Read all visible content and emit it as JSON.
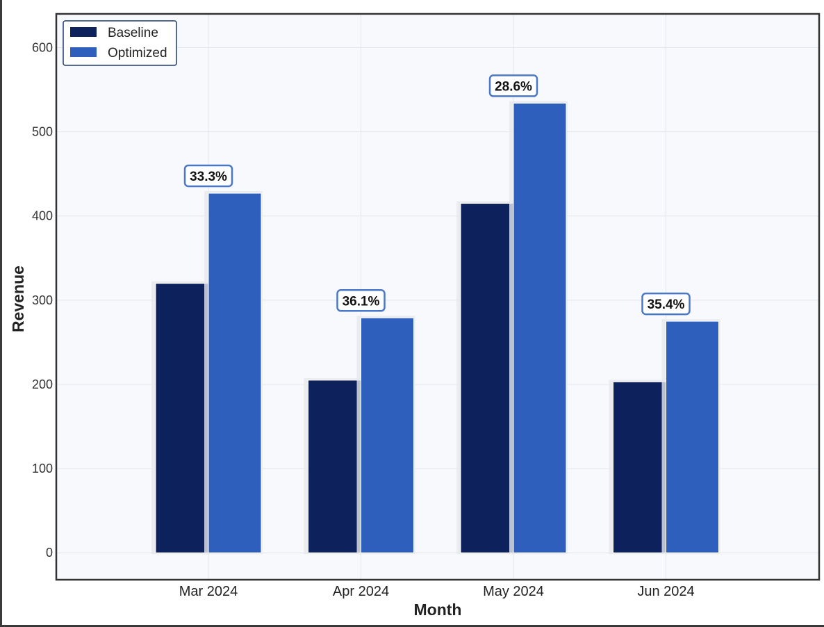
{
  "chart_data": {
    "type": "bar",
    "categories": [
      "Mar 2024",
      "Apr 2024",
      "May 2024",
      "Jun 2024"
    ],
    "series": [
      {
        "name": "Baseline",
        "values": [
          320,
          205,
          415,
          203
        ],
        "color": "#0d215d"
      },
      {
        "name": "Optimized",
        "values": [
          427,
          279,
          534,
          275
        ],
        "color": "#2f5fbd"
      }
    ],
    "annotations": [
      "33.3%",
      "36.1%",
      "28.6%",
      "35.4%"
    ],
    "xlabel": "Month",
    "ylabel": "Revenue",
    "ylim": [
      -32,
      640
    ],
    "yticks": [
      0,
      100,
      200,
      300,
      400,
      500,
      600
    ],
    "grid": true,
    "legend_position": "top-left",
    "colors": {
      "plot_background": "#f7f9fc",
      "annotation_border": "#4a78c8",
      "legend_border": "#1f3a6e",
      "grid": "#e3e6ec"
    }
  }
}
